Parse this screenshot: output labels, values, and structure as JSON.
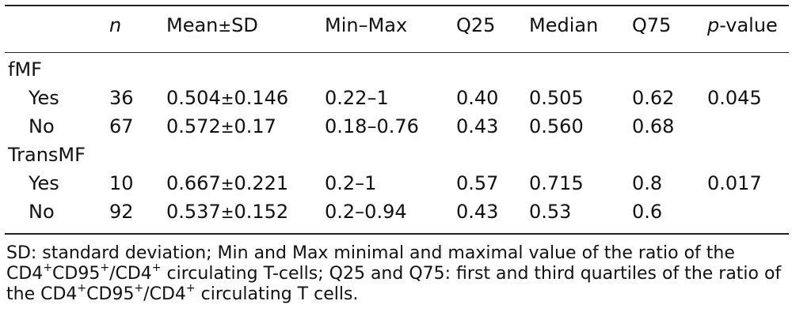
{
  "table": {
    "headers": {
      "label": "",
      "n": "n",
      "mean_sd_prefix": "Mean",
      "mean_sd_pm": "±",
      "mean_sd_suffix": "SD",
      "minmax": "Min–Max",
      "q25": "Q25",
      "median": "Median",
      "q75": "Q75",
      "p_value_italic": "p",
      "p_value_rest": "-value"
    },
    "groups": [
      {
        "label": "fMF",
        "rows": [
          {
            "label": "Yes",
            "n": "36",
            "mean": "0.504",
            "pm": "±",
            "sd": "0.146",
            "minmax": "0.22–1",
            "q25": "0.40",
            "median": "0.505",
            "q75": "0.62",
            "p_value": "0.045"
          },
          {
            "label": "No",
            "n": "67",
            "mean": "0.572",
            "pm": "±",
            "sd": "0.17",
            "minmax": "0.18–0.76",
            "q25": "0.43",
            "median": "0.560",
            "q75": "0.68",
            "p_value": ""
          }
        ]
      },
      {
        "label": "TransMF",
        "rows": [
          {
            "label": "Yes",
            "n": "10",
            "mean": "0.667",
            "pm": "±",
            "sd": "0.221",
            "minmax": "0.2–1",
            "q25": "0.57",
            "median": "0.715",
            "q75": "0.8",
            "p_value": "0.017"
          },
          {
            "label": "No",
            "n": "92",
            "mean": "0.537",
            "pm": "±",
            "sd": "0.152",
            "minmax": "0.2–0.94",
            "q25": "0.43",
            "median": "0.53",
            "q75": "0.6",
            "p_value": ""
          }
        ]
      }
    ]
  },
  "footnote": {
    "part1": "SD: standard deviation; Min and Max minimal and maximal value of the ratio of the CD4",
    "sup1": "+",
    "part2": "CD95",
    "sup2": "+",
    "part3": "/CD4",
    "sup3": "+",
    "part4": " circulating T-cells; Q25 and Q75: first and third quartiles of the ratio of the CD4",
    "sup4": "+",
    "part5": "CD95",
    "sup5": "+",
    "part6": "/CD4",
    "sup6": "+",
    "part7": " circulating T cells."
  }
}
